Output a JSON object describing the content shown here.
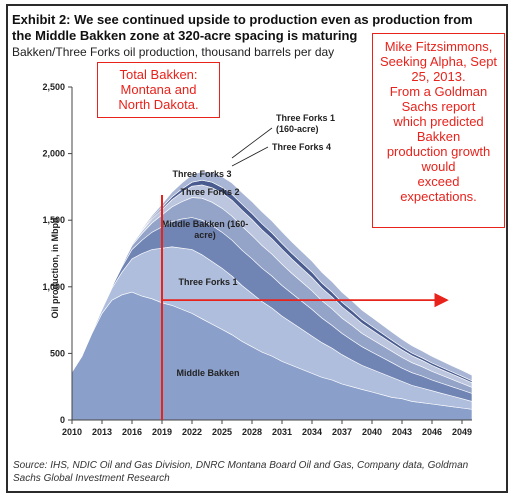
{
  "header": {
    "title": "Exhibit 2: We see continued upside to production even as production from the Middle Bakken zone at 320-acre spacing is maturing",
    "subtitle": "Bakken/Three Forks oil production, thousand barrels per day"
  },
  "annotations": {
    "left_box": [
      "Total Bakken:",
      "Montana and",
      "North Dakota."
    ],
    "right_box": [
      "Mike Fitzsimmons,",
      "Seeking Alpha, Sept",
      "25, 2013.",
      "From a Goldman",
      "Sachs report",
      "which predicted",
      "Bakken",
      "production growth",
      "would",
      "exceed",
      "expectations."
    ]
  },
  "source": "Source: IHS, NDIC Oil and Gas Division, DNRC Montana Board Oil and Gas, Company data, Goldman Sachs Global Investment Research",
  "colors": {
    "series": [
      "#8a9fc9",
      "#b0bedd",
      "#7185b5",
      "#94a4c9",
      "#bcc6de",
      "#4a5c8f",
      "#a8b5d4"
    ],
    "annotation": "#e8231c"
  },
  "chart_data": {
    "type": "area",
    "stacked": true,
    "ylabel": "Oil production, in Mbpd",
    "xlabel": "",
    "x": [
      2010,
      2011,
      2012,
      2013,
      2014,
      2015,
      2016,
      2017,
      2018,
      2019,
      2020,
      2021,
      2022,
      2023,
      2024,
      2025,
      2026,
      2027,
      2028,
      2029,
      2030,
      2031,
      2032,
      2033,
      2034,
      2035,
      2036,
      2037,
      2038,
      2039,
      2040,
      2041,
      2042,
      2043,
      2044,
      2045,
      2046,
      2047,
      2048,
      2049,
      2050
    ],
    "xticks": [
      "2010",
      "2013",
      "2016",
      "2019",
      "2022",
      "2025",
      "2028",
      "2031",
      "2034",
      "2037",
      "2040",
      "2043",
      "2046",
      "2049"
    ],
    "yticks": [
      "0",
      "500",
      "1,000",
      "1,500",
      "2,000",
      "2,500"
    ],
    "ylim": [
      0,
      2500
    ],
    "series": [
      {
        "name": "Middle Bakken",
        "values": [
          360,
          480,
          650,
          800,
          900,
          940,
          960,
          930,
          910,
          880,
          860,
          830,
          800,
          760,
          720,
          680,
          640,
          590,
          550,
          510,
          480,
          440,
          410,
          380,
          350,
          320,
          300,
          270,
          250,
          230,
          210,
          190,
          170,
          160,
          140,
          130,
          120,
          110,
          100,
          90,
          80
        ]
      },
      {
        "name": "Three Forks 1",
        "values": [
          0,
          0,
          10,
          30,
          90,
          170,
          250,
          320,
          370,
          410,
          440,
          460,
          480,
          480,
          470,
          460,
          440,
          420,
          400,
          380,
          360,
          340,
          320,
          300,
          280,
          260,
          240,
          220,
          200,
          180,
          170,
          160,
          150,
          130,
          120,
          110,
          100,
          90,
          80,
          70,
          60
        ]
      },
      {
        "name": "Middle Bakken (160-acre)",
        "values": [
          0,
          0,
          0,
          0,
          10,
          40,
          70,
          100,
          130,
          160,
          190,
          220,
          240,
          260,
          270,
          270,
          270,
          265,
          260,
          250,
          240,
          230,
          220,
          210,
          200,
          185,
          170,
          160,
          150,
          140,
          130,
          120,
          110,
          100,
          95,
          90,
          80,
          75,
          70,
          65,
          60
        ]
      },
      {
        "name": "Three Forks 2",
        "values": [
          0,
          0,
          0,
          0,
          0,
          10,
          30,
          50,
          70,
          90,
          110,
          130,
          150,
          165,
          175,
          180,
          180,
          180,
          175,
          170,
          165,
          160,
          150,
          145,
          140,
          130,
          125,
          115,
          110,
          100,
          95,
          90,
          85,
          80,
          75,
          70,
          65,
          60,
          55,
          50,
          45
        ]
      },
      {
        "name": "Three Forks 3",
        "values": [
          0,
          0,
          0,
          0,
          0,
          0,
          10,
          20,
          30,
          40,
          55,
          70,
          85,
          100,
          110,
          115,
          120,
          120,
          120,
          118,
          115,
          112,
          108,
          104,
          100,
          95,
          90,
          85,
          80,
          75,
          70,
          65,
          60,
          56,
          52,
          48,
          45,
          42,
          40,
          38,
          35
        ]
      },
      {
        "name": "Three Forks 4",
        "values": [
          0,
          0,
          0,
          0,
          0,
          0,
          0,
          5,
          10,
          15,
          20,
          25,
          30,
          35,
          40,
          42,
          44,
          45,
          45,
          45,
          44,
          43,
          42,
          41,
          40,
          38,
          36,
          34,
          32,
          30,
          28,
          26,
          24,
          22,
          20,
          19,
          18,
          17,
          16,
          15,
          14
        ]
      },
      {
        "name": "Three Forks 1 (160-acre)",
        "values": [
          0,
          0,
          0,
          0,
          0,
          0,
          5,
          10,
          15,
          25,
          35,
          45,
          55,
          65,
          75,
          80,
          85,
          88,
          90,
          90,
          90,
          88,
          86,
          84,
          82,
          80,
          78,
          75,
          72,
          70,
          67,
          64,
          61,
          58,
          55,
          52,
          50,
          48,
          46,
          44,
          42
        ]
      }
    ],
    "series_labels": [
      "Middle Bakken",
      "Three Forks 1",
      "Middle Bakken (160-",
      "acre)",
      "Three Forks 2",
      "Three Forks 3",
      "Three Forks 4",
      "Three Forks 1",
      "(160-acre)"
    ],
    "markers": {
      "vertical_line_x": 2019,
      "arrow_y": 900,
      "arrow_from_x": 2019,
      "arrow_to_x": 2047.5
    },
    "grid": false,
    "legend": "none"
  }
}
